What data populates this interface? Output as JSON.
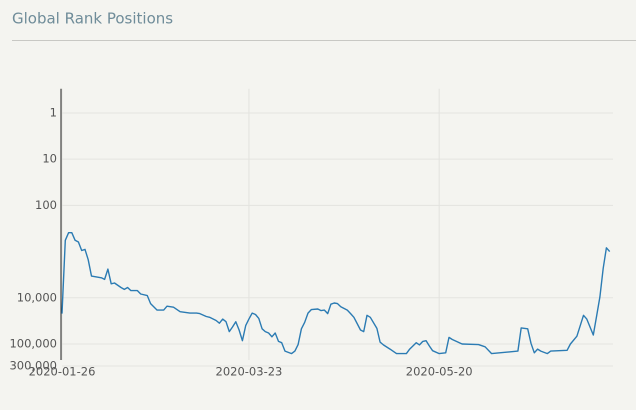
{
  "chart_data": {
    "type": "line",
    "title": "Global Rank Positions",
    "log_scale": true,
    "y_inverted": true,
    "grid": true,
    "xlim": [
      "2020-01-26",
      "2020-07-12"
    ],
    "xticks": [
      "2020-01-26",
      "2020-03-23",
      "2020-05-20"
    ],
    "ylim": [
      0.3,
      300000
    ],
    "yticks": [
      1,
      10,
      100,
      {
        "value": 10000,
        "label": "10,000"
      },
      {
        "value": 100000,
        "label": "100,000"
      },
      {
        "value": 300000,
        "label": "300,000"
      }
    ],
    "x": [
      "2020-01-26",
      "2020-01-27",
      "2020-01-28",
      "2020-01-29",
      "2020-01-30",
      "2020-01-31",
      "2020-02-01",
      "2020-02-02",
      "2020-02-03",
      "2020-02-04",
      "2020-02-07",
      "2020-02-08",
      "2020-02-09",
      "2020-02-10",
      "2020-02-11",
      "2020-02-13",
      "2020-02-14",
      "2020-02-15",
      "2020-02-16",
      "2020-02-18",
      "2020-02-19",
      "2020-02-21",
      "2020-02-22",
      "2020-02-24",
      "2020-02-26",
      "2020-02-27",
      "2020-02-29",
      "2020-03-02",
      "2020-03-05",
      "2020-03-07",
      "2020-03-08",
      "2020-03-10",
      "2020-03-11",
      "2020-03-13",
      "2020-03-14",
      "2020-03-15",
      "2020-03-16",
      "2020-03-17",
      "2020-03-18",
      "2020-03-19",
      "2020-03-20",
      "2020-03-21",
      "2020-03-22",
      "2020-03-23",
      "2020-03-24",
      "2020-03-25",
      "2020-03-26",
      "2020-03-27",
      "2020-03-28",
      "2020-03-29",
      "2020-03-30",
      "2020-03-31",
      "2020-04-01",
      "2020-04-02",
      "2020-04-03",
      "2020-04-05",
      "2020-04-06",
      "2020-04-07",
      "2020-04-08",
      "2020-04-09",
      "2020-04-10",
      "2020-04-11",
      "2020-04-13",
      "2020-04-14",
      "2020-04-15",
      "2020-04-16",
      "2020-04-17",
      "2020-04-18",
      "2020-04-19",
      "2020-04-20",
      "2020-04-22",
      "2020-04-23",
      "2020-04-24",
      "2020-04-26",
      "2020-04-27",
      "2020-04-28",
      "2020-04-29",
      "2020-05-01",
      "2020-05-02",
      "2020-05-03",
      "2020-05-05",
      "2020-05-07",
      "2020-05-10",
      "2020-05-11",
      "2020-05-13",
      "2020-05-14",
      "2020-05-15",
      "2020-05-16",
      "2020-05-17",
      "2020-05-18",
      "2020-05-20",
      "2020-05-22",
      "2020-05-23",
      "2020-05-24",
      "2020-05-27",
      "2020-06-01",
      "2020-06-03",
      "2020-06-05",
      "2020-06-13",
      "2020-06-14",
      "2020-06-16",
      "2020-06-17",
      "2020-06-18",
      "2020-06-19",
      "2020-06-20",
      "2020-06-22",
      "2020-06-23",
      "2020-06-28",
      "2020-06-29",
      "2020-07-01",
      "2020-07-03",
      "2020-07-04",
      "2020-07-06",
      "2020-07-07",
      "2020-07-08",
      "2020-07-09",
      "2020-07-10",
      "2020-07-11"
    ],
    "series": [
      {
        "color": "#2b7bb3",
        "values": [
          22000,
          570,
          390,
          390,
          570,
          620,
          950,
          900,
          1500,
          3400,
          3700,
          4000,
          2400,
          5000,
          4800,
          6000,
          6600,
          6000,
          7000,
          7000,
          8300,
          9000,
          13400,
          18500,
          18500,
          15200,
          16000,
          20000,
          21500,
          21500,
          22000,
          25500,
          26500,
          31000,
          35500,
          29000,
          33000,
          54000,
          43000,
          33000,
          50000,
          85000,
          40000,
          29000,
          21500,
          23000,
          28000,
          47000,
          54000,
          58000,
          70000,
          58000,
          88000,
          94000,
          143000,
          162000,
          143000,
          103000,
          47000,
          34000,
          21500,
          18000,
          17500,
          19000,
          18500,
          22000,
          13800,
          13000,
          13400,
          15600,
          18500,
          22000,
          26500,
          50000,
          54000,
          24000,
          26500,
          46000,
          91000,
          105000,
          129000,
          162000,
          162000,
          129000,
          94000,
          105000,
          88000,
          85000,
          110000,
          140000,
          162000,
          155000,
          72000,
          80000,
          100000,
          103000,
          115000,
          162000,
          143000,
          45000,
          47000,
          97000,
          155000,
          129000,
          143000,
          162000,
          143000,
          137000,
          100000,
          68000,
          24000,
          29000,
          64000,
          25000,
          9600,
          2300,
          830,
          1000
        ]
      }
    ]
  }
}
